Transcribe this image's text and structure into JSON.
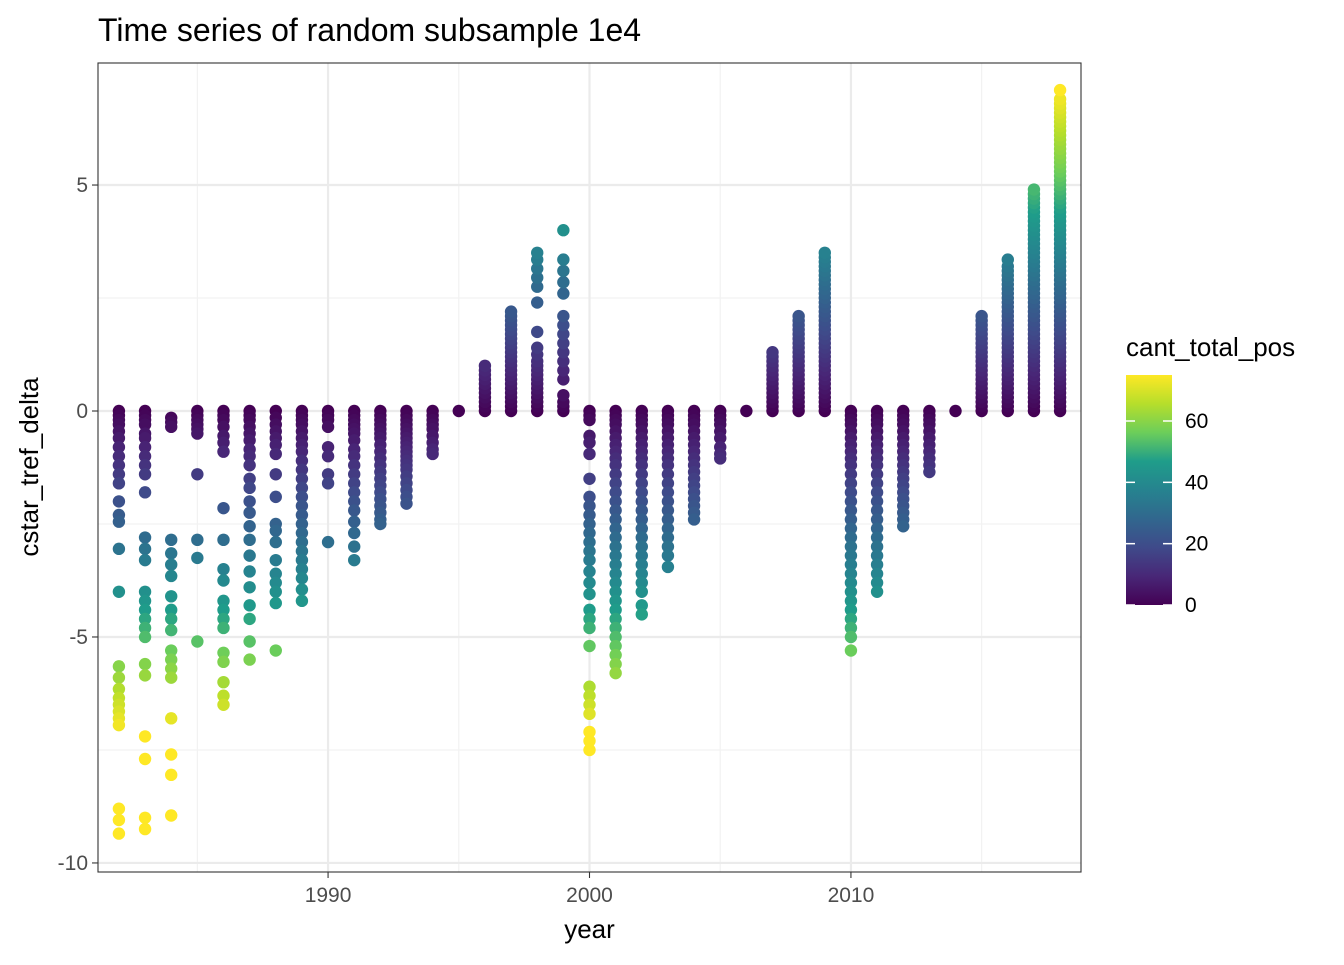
{
  "chart_data": {
    "type": "scatter",
    "title": "Time series of random subsample 1e4",
    "xlabel": "year",
    "ylabel": "cstar_tref_delta",
    "xlim": [
      1981.2,
      2018.8
    ],
    "ylim": [
      -10.2,
      7.7
    ],
    "x_ticks": [
      1990,
      2000,
      2010
    ],
    "y_ticks": [
      -10,
      -5,
      0,
      5
    ],
    "x_minor_ticks": [
      1985,
      1995,
      2005,
      2015
    ],
    "y_minor_ticks": [
      -7.5,
      -2.5,
      2.5
    ],
    "y_tick_labels": [
      "-10",
      "-5",
      "0",
      "5"
    ],
    "grid": true,
    "theme": "bw",
    "color_scale": {
      "name": "cant_total_pos",
      "palette": "viridis",
      "limits": [
        0,
        75
      ],
      "breaks": [
        0,
        20,
        40,
        60
      ],
      "colors": [
        "#440154",
        "#482777",
        "#3F4A8A",
        "#31678E",
        "#26838F",
        "#1F9D8A",
        "#6CCE5A",
        "#B6DE2B",
        "#FEE825"
      ]
    },
    "legend_position": "right",
    "series": [
      {
        "year": 1982,
        "y": [
          0,
          -0.1,
          -0.2,
          -0.3,
          -0.45,
          -0.6,
          -0.8,
          -1.0,
          -1.2,
          -1.4,
          -1.6,
          -2.0,
          -2.3,
          -2.45,
          -3.05,
          -4.0,
          -5.65,
          -5.9,
          -6.15,
          -6.35,
          -6.5,
          -6.65,
          -6.8,
          -6.95,
          -8.8,
          -9.05,
          -9.35
        ]
      },
      {
        "year": 1983,
        "y": [
          0,
          -0.1,
          -0.2,
          -0.3,
          -0.5,
          -0.6,
          -0.8,
          -1.0,
          -1.2,
          -1.4,
          -1.8,
          -2.8,
          -3.05,
          -3.3,
          -4.0,
          -4.2,
          -4.4,
          -4.6,
          -4.8,
          -5.0,
          -5.6,
          -5.85,
          -7.2,
          -7.7,
          -9.0,
          -9.25
        ]
      },
      {
        "year": 1984,
        "y": [
          -0.15,
          -0.25,
          -0.35,
          -2.85,
          -3.15,
          -3.4,
          -3.65,
          -4.1,
          -4.4,
          -4.6,
          -4.85,
          -5.3,
          -5.5,
          -5.7,
          -5.9,
          -6.8,
          -7.6,
          -8.05,
          -8.95
        ]
      },
      {
        "year": 1985,
        "y": [
          0,
          -0.1,
          -0.2,
          -0.3,
          -0.4,
          -0.5,
          -1.4,
          -2.85,
          -3.25,
          -5.1
        ]
      },
      {
        "year": 1986,
        "y": [
          0,
          -0.1,
          -0.2,
          -0.35,
          -0.55,
          -0.7,
          -0.9,
          -2.15,
          -2.85,
          -3.5,
          -3.75,
          -4.2,
          -4.4,
          -4.6,
          -4.8,
          -5.35,
          -5.55,
          -6.0,
          -6.3,
          -6.5
        ]
      },
      {
        "year": 1987,
        "y": [
          0,
          -0.1,
          -0.2,
          -0.35,
          -0.5,
          -0.65,
          -0.85,
          -1.0,
          -1.2,
          -1.5,
          -1.7,
          -2.0,
          -2.25,
          -2.55,
          -2.85,
          -3.2,
          -3.55,
          -3.9,
          -4.3,
          -4.6,
          -5.1,
          -5.5
        ]
      },
      {
        "year": 1988,
        "y": [
          0,
          -0.15,
          -0.3,
          -0.45,
          -0.6,
          -0.75,
          -0.95,
          -1.4,
          -1.9,
          -2.5,
          -2.65,
          -2.9,
          -3.3,
          -3.6,
          -3.8,
          -4.0,
          -4.25,
          -5.3
        ]
      },
      {
        "year": 1989,
        "y": [
          0,
          -0.1,
          -0.2,
          -0.3,
          -0.45,
          -0.6,
          -0.75,
          -0.9,
          -1.1,
          -1.3,
          -1.5,
          -1.7,
          -1.9,
          -2.1,
          -2.3,
          -2.5,
          -2.7,
          -2.9,
          -3.1,
          -3.3,
          -3.5,
          -3.7,
          -3.95,
          -4.2
        ]
      },
      {
        "year": 1990,
        "y": [
          0,
          -0.1,
          -0.2,
          -0.35,
          -0.8,
          -1.0,
          -1.4,
          -1.6,
          -2.9
        ]
      },
      {
        "year": 1991,
        "y": [
          0,
          -0.1,
          -0.2,
          -0.3,
          -0.4,
          -0.5,
          -0.65,
          -0.85,
          -1.0,
          -1.2,
          -1.4,
          -1.6,
          -1.8,
          -2.0,
          -2.2,
          -2.45,
          -2.7,
          -3.0,
          -3.3
        ]
      },
      {
        "year": 1992,
        "y": [
          0,
          -0.1,
          -0.2,
          -0.3,
          -0.4,
          -0.5,
          -0.6,
          -0.75,
          -0.9,
          -1.05,
          -1.2,
          -1.35,
          -1.5,
          -1.65,
          -1.8,
          -1.95,
          -2.1,
          -2.25,
          -2.4,
          -2.5
        ]
      },
      {
        "year": 1993,
        "y": [
          0,
          -0.1,
          -0.2,
          -0.3,
          -0.4,
          -0.5,
          -0.6,
          -0.7,
          -0.8,
          -0.9,
          -1.0,
          -1.1,
          -1.2,
          -1.3,
          -1.45,
          -1.6,
          -1.75,
          -1.9,
          -2.05
        ]
      },
      {
        "year": 1994,
        "y": [
          0,
          -0.1,
          -0.2,
          -0.3,
          -0.4,
          -0.55,
          -0.7,
          -0.85,
          -0.95
        ]
      },
      {
        "year": 1995,
        "y": [
          0
        ]
      },
      {
        "year": 1996,
        "y": [
          0,
          0.1,
          0.2,
          0.3,
          0.4,
          0.5,
          0.6,
          0.7,
          0.8,
          0.9,
          1.0
        ]
      },
      {
        "year": 1997,
        "y": [
          0,
          0.1,
          0.2,
          0.3,
          0.4,
          0.5,
          0.6,
          0.7,
          0.8,
          0.9,
          1.0,
          1.1,
          1.2,
          1.3,
          1.4,
          1.5,
          1.6,
          1.7,
          1.8,
          1.9,
          2.0,
          2.1,
          2.2
        ]
      },
      {
        "year": 1998,
        "y": [
          0,
          0.1,
          0.2,
          0.3,
          0.4,
          0.5,
          0.6,
          0.7,
          0.8,
          0.9,
          1.0,
          1.1,
          1.25,
          1.4,
          1.75,
          2.4,
          2.75,
          2.95,
          3.15,
          3.35,
          3.5
        ]
      },
      {
        "year": 1999,
        "y": [
          0,
          0.1,
          0.2,
          0.35,
          0.7,
          0.9,
          1.1,
          1.3,
          1.5,
          1.7,
          1.9,
          2.1,
          2.6,
          2.85,
          3.1,
          3.35,
          4.0
        ]
      },
      {
        "year": 2000,
        "y": [
          0,
          -0.1,
          -0.2,
          -0.55,
          -0.7,
          -0.95,
          -1.5,
          -1.9,
          -2.1,
          -2.3,
          -2.5,
          -2.7,
          -2.9,
          -3.1,
          -3.3,
          -3.55,
          -3.8,
          -4.05,
          -4.4,
          -4.6,
          -4.8,
          -5.2,
          -6.1,
          -6.3,
          -6.5,
          -6.7,
          -7.1,
          -7.3,
          -7.5
        ]
      },
      {
        "year": 2001,
        "y": [
          0,
          -0.1,
          -0.2,
          -0.3,
          -0.45,
          -0.6,
          -0.75,
          -0.9,
          -1.05,
          -1.2,
          -1.4,
          -1.6,
          -1.8,
          -2.0,
          -2.2,
          -2.4,
          -2.6,
          -2.8,
          -3.0,
          -3.2,
          -3.4,
          -3.6,
          -3.8,
          -4.0,
          -4.2,
          -4.4,
          -4.6,
          -4.8,
          -5.0,
          -5.2,
          -5.4,
          -5.6,
          -5.8
        ]
      },
      {
        "year": 2002,
        "y": [
          0,
          -0.1,
          -0.2,
          -0.3,
          -0.45,
          -0.6,
          -0.75,
          -0.9,
          -1.05,
          -1.2,
          -1.4,
          -1.6,
          -1.8,
          -2.0,
          -2.2,
          -2.4,
          -2.6,
          -2.8,
          -3.0,
          -3.2,
          -3.4,
          -3.6,
          -3.8,
          -4.0,
          -4.3,
          -4.5
        ]
      },
      {
        "year": 2003,
        "y": [
          0,
          -0.1,
          -0.2,
          -0.3,
          -0.45,
          -0.6,
          -0.75,
          -0.9,
          -1.05,
          -1.2,
          -1.4,
          -1.6,
          -1.8,
          -2.0,
          -2.2,
          -2.4,
          -2.6,
          -2.8,
          -3.0,
          -3.2,
          -3.45
        ]
      },
      {
        "year": 2004,
        "y": [
          0,
          -0.1,
          -0.2,
          -0.3,
          -0.45,
          -0.6,
          -0.75,
          -0.9,
          -1.05,
          -1.2,
          -1.35,
          -1.5,
          -1.65,
          -1.8,
          -1.95,
          -2.1,
          -2.25,
          -2.4
        ]
      },
      {
        "year": 2005,
        "y": [
          0,
          -0.1,
          -0.2,
          -0.3,
          -0.45,
          -0.6,
          -0.8,
          -0.95,
          -1.05
        ]
      },
      {
        "year": 2006,
        "y": [
          0
        ]
      },
      {
        "year": 2007,
        "y": [
          0,
          0.1,
          0.2,
          0.3,
          0.4,
          0.5,
          0.6,
          0.7,
          0.8,
          0.9,
          1.0,
          1.1,
          1.2,
          1.3
        ]
      },
      {
        "year": 2008,
        "y": [
          0,
          0.1,
          0.2,
          0.3,
          0.4,
          0.5,
          0.6,
          0.7,
          0.8,
          0.9,
          1.0,
          1.1,
          1.2,
          1.3,
          1.4,
          1.5,
          1.6,
          1.7,
          1.8,
          1.9,
          2.0,
          2.1
        ]
      },
      {
        "year": 2009,
        "y": [
          0,
          0.1,
          0.2,
          0.3,
          0.4,
          0.5,
          0.6,
          0.7,
          0.8,
          0.9,
          1.0,
          1.1,
          1.2,
          1.3,
          1.4,
          1.5,
          1.6,
          1.7,
          1.8,
          1.9,
          2.0,
          2.1,
          2.2,
          2.3,
          2.4,
          2.5,
          2.6,
          2.7,
          2.8,
          2.9,
          3.0,
          3.1,
          3.2,
          3.3,
          3.4,
          3.5
        ]
      },
      {
        "year": 2010,
        "y": [
          0,
          -0.1,
          -0.2,
          -0.3,
          -0.45,
          -0.6,
          -0.75,
          -0.9,
          -1.05,
          -1.2,
          -1.4,
          -1.6,
          -1.8,
          -2.0,
          -2.2,
          -2.4,
          -2.6,
          -2.8,
          -3.0,
          -3.2,
          -3.4,
          -3.6,
          -3.8,
          -4.0,
          -4.2,
          -4.4,
          -4.6,
          -4.8,
          -5.0,
          -5.3
        ]
      },
      {
        "year": 2011,
        "y": [
          0,
          -0.1,
          -0.2,
          -0.3,
          -0.45,
          -0.6,
          -0.75,
          -0.9,
          -1.05,
          -1.2,
          -1.4,
          -1.6,
          -1.8,
          -2.0,
          -2.2,
          -2.4,
          -2.6,
          -2.8,
          -3.0,
          -3.2,
          -3.4,
          -3.6,
          -3.8,
          -4.0
        ]
      },
      {
        "year": 2012,
        "y": [
          0,
          -0.1,
          -0.2,
          -0.3,
          -0.45,
          -0.6,
          -0.75,
          -0.9,
          -1.05,
          -1.2,
          -1.35,
          -1.5,
          -1.65,
          -1.8,
          -1.95,
          -2.1,
          -2.25,
          -2.4,
          -2.55
        ]
      },
      {
        "year": 2013,
        "y": [
          0,
          -0.1,
          -0.2,
          -0.3,
          -0.45,
          -0.6,
          -0.75,
          -0.9,
          -1.05,
          -1.2,
          -1.35
        ]
      },
      {
        "year": 2014,
        "y": [
          0
        ]
      },
      {
        "year": 2015,
        "y": [
          0,
          0.1,
          0.2,
          0.3,
          0.4,
          0.5,
          0.6,
          0.7,
          0.8,
          0.9,
          1.0,
          1.1,
          1.2,
          1.3,
          1.4,
          1.5,
          1.6,
          1.7,
          1.8,
          1.9,
          2.0,
          2.1
        ]
      },
      {
        "year": 2016,
        "y": [
          0,
          0.1,
          0.2,
          0.3,
          0.4,
          0.5,
          0.6,
          0.7,
          0.8,
          0.9,
          1.0,
          1.1,
          1.2,
          1.3,
          1.4,
          1.5,
          1.6,
          1.7,
          1.8,
          1.9,
          2.0,
          2.1,
          2.2,
          2.3,
          2.4,
          2.5,
          2.6,
          2.7,
          2.8,
          2.9,
          3.0,
          3.1,
          3.2,
          3.35
        ]
      },
      {
        "year": 2017,
        "y": [
          0,
          0.1,
          0.2,
          0.3,
          0.4,
          0.5,
          0.6,
          0.7,
          0.8,
          0.9,
          1.0,
          1.1,
          1.2,
          1.3,
          1.4,
          1.5,
          1.6,
          1.7,
          1.8,
          1.9,
          2.0,
          2.1,
          2.2,
          2.3,
          2.4,
          2.5,
          2.6,
          2.7,
          2.8,
          2.9,
          3.0,
          3.1,
          3.2,
          3.3,
          3.4,
          3.5,
          3.6,
          3.7,
          3.8,
          3.9,
          4.0,
          4.1,
          4.2,
          4.3,
          4.4,
          4.5,
          4.6,
          4.7,
          4.8,
          4.9
        ]
      },
      {
        "year": 2018,
        "y": [
          0,
          0.1,
          0.2,
          0.3,
          0.4,
          0.5,
          0.6,
          0.7,
          0.8,
          0.9,
          1.0,
          1.1,
          1.2,
          1.3,
          1.4,
          1.5,
          1.6,
          1.7,
          1.8,
          1.9,
          2.0,
          2.1,
          2.2,
          2.3,
          2.4,
          2.5,
          2.6,
          2.7,
          2.8,
          2.9,
          3.0,
          3.1,
          3.2,
          3.3,
          3.4,
          3.5,
          3.6,
          3.7,
          3.8,
          3.9,
          4.0,
          4.1,
          4.2,
          4.3,
          4.4,
          4.5,
          4.6,
          4.7,
          4.8,
          4.9,
          5.0,
          5.1,
          5.2,
          5.3,
          5.4,
          5.5,
          5.6,
          5.7,
          5.8,
          5.9,
          6.0,
          6.1,
          6.2,
          6.3,
          6.4,
          6.5,
          6.6,
          6.7,
          6.8,
          6.9,
          7.1
        ]
      }
    ]
  }
}
